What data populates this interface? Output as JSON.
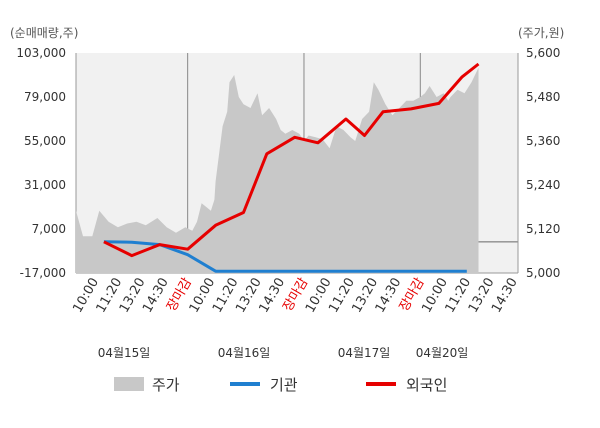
{
  "chart_data": {
    "type": "line",
    "left_axis_unit": "(순매매량,주)",
    "right_axis_unit": "(주가,원)",
    "left_ticks": [
      "103,000",
      "79,000",
      "55,000",
      "31,000",
      "7,000",
      "-17,000"
    ],
    "right_ticks": [
      "5,600",
      "5,480",
      "5,360",
      "5,240",
      "5,120",
      "5,000"
    ],
    "ylim_left": [
      -17000,
      103000
    ],
    "ylim_right": [
      5000,
      5600
    ],
    "x_tick_labels": [
      "10:00",
      "11:20",
      "13:20",
      "14:30",
      "장마감",
      "10:00",
      "11:20",
      "13:20",
      "14:30",
      "장마감",
      "10:00",
      "11:20",
      "13:20",
      "14:30",
      "장마감",
      "10:00",
      "11:20",
      "13:20",
      "14:30"
    ],
    "closing_label": "장마감",
    "dates": [
      "04월15일",
      "04월16일",
      "04월17일",
      "04월20일"
    ],
    "legend": [
      {
        "name": "주가",
        "color": "#c8c8c8",
        "kind": "area"
      },
      {
        "name": "기관",
        "color": "#1f7fd0",
        "kind": "line"
      },
      {
        "name": "외국인",
        "color": "#e60000",
        "kind": "line"
      }
    ],
    "series": [
      {
        "name": "기관",
        "color": "#1f7fd0",
        "points": [
          [
            1.2,
            0
          ],
          [
            2.4,
            -200
          ],
          [
            3.6,
            -1500
          ],
          [
            4.8,
            -7000
          ],
          [
            6.0,
            -16000
          ],
          [
            8.0,
            -16000
          ],
          [
            10.0,
            -16000
          ],
          [
            12.0,
            -16000
          ],
          [
            14.0,
            -16000
          ],
          [
            15.0,
            -16000
          ],
          [
            16.8,
            -16000
          ]
        ]
      },
      {
        "name": "외국인",
        "color": "#e60000",
        "points": [
          [
            1.2,
            0
          ],
          [
            2.4,
            -7500
          ],
          [
            3.6,
            -1500
          ],
          [
            4.8,
            -4000
          ],
          [
            6.0,
            9000
          ],
          [
            7.2,
            16000
          ],
          [
            8.2,
            48000
          ],
          [
            9.4,
            57000
          ],
          [
            10.4,
            54000
          ],
          [
            11.6,
            67000
          ],
          [
            12.4,
            58000
          ],
          [
            13.2,
            71000
          ],
          [
            14.4,
            72500
          ],
          [
            15.6,
            75500
          ],
          [
            16.6,
            90000
          ],
          [
            17.3,
            97000
          ]
        ]
      },
      {
        "name": "주가",
        "color": "#c8c8c8",
        "type": "area",
        "points": [
          [
            0,
            5170
          ],
          [
            0.3,
            5100
          ],
          [
            0.7,
            5100
          ],
          [
            1.0,
            5170
          ],
          [
            1.4,
            5140
          ],
          [
            1.8,
            5125
          ],
          [
            2.2,
            5135
          ],
          [
            2.6,
            5140
          ],
          [
            3.0,
            5130
          ],
          [
            3.5,
            5150
          ],
          [
            3.9,
            5125
          ],
          [
            4.3,
            5110
          ],
          [
            4.7,
            5125
          ],
          [
            5.0,
            5115
          ],
          [
            5.2,
            5140
          ],
          [
            5.4,
            5190
          ],
          [
            5.6,
            5180
          ],
          [
            5.8,
            5170
          ],
          [
            5.95,
            5200
          ],
          [
            6.0,
            5250
          ],
          [
            6.3,
            5400
          ],
          [
            6.5,
            5440
          ],
          [
            6.6,
            5520
          ],
          [
            6.8,
            5540
          ],
          [
            7.0,
            5480
          ],
          [
            7.2,
            5460
          ],
          [
            7.5,
            5450
          ],
          [
            7.8,
            5490
          ],
          [
            8.0,
            5430
          ],
          [
            8.3,
            5450
          ],
          [
            8.6,
            5420
          ],
          [
            8.8,
            5390
          ],
          [
            9.0,
            5380
          ],
          [
            9.3,
            5390
          ],
          [
            9.6,
            5380
          ],
          [
            9.8,
            5360
          ],
          [
            10.0,
            5375
          ],
          [
            10.3,
            5370
          ],
          [
            10.6,
            5365
          ],
          [
            10.9,
            5340
          ],
          [
            11.0,
            5360
          ],
          [
            11.2,
            5400
          ],
          [
            11.5,
            5390
          ],
          [
            11.8,
            5370
          ],
          [
            12.0,
            5360
          ],
          [
            12.1,
            5380
          ],
          [
            12.3,
            5420
          ],
          [
            12.6,
            5440
          ],
          [
            12.8,
            5520
          ],
          [
            13.0,
            5500
          ],
          [
            13.3,
            5460
          ],
          [
            13.6,
            5430
          ],
          [
            13.9,
            5450
          ],
          [
            14.2,
            5470
          ],
          [
            14.5,
            5470
          ],
          [
            14.8,
            5480
          ],
          [
            15.0,
            5490
          ],
          [
            15.2,
            5510
          ],
          [
            15.5,
            5480
          ],
          [
            15.8,
            5490
          ],
          [
            16.0,
            5470
          ],
          [
            16.1,
            5480
          ],
          [
            16.4,
            5500
          ],
          [
            16.7,
            5490
          ],
          [
            17.0,
            5520
          ],
          [
            17.3,
            5560
          ]
        ]
      }
    ],
    "zero_line": 0,
    "grid": true
  }
}
